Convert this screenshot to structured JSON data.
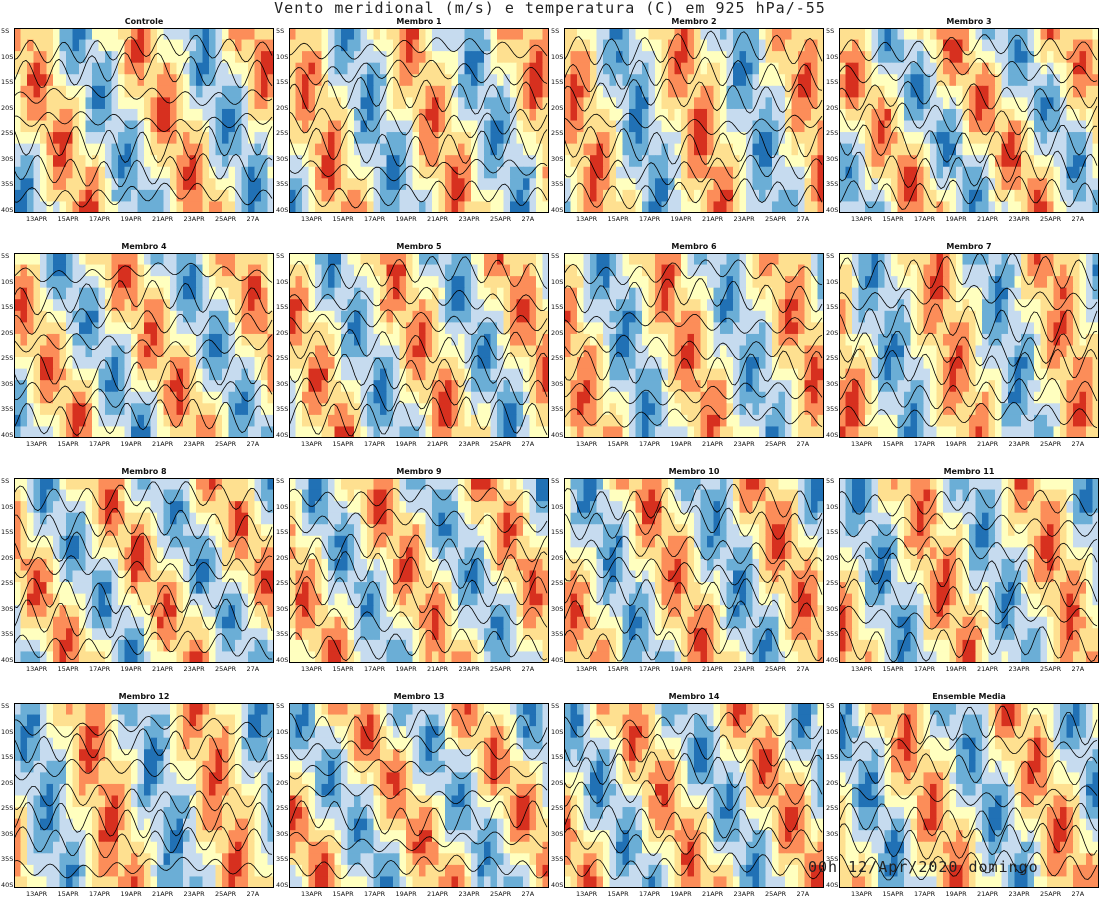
{
  "title": "Vento meridional (m/s) e temperatura (C)  em 925  hPa/-55",
  "timestamp": "00h 12/Apr/2020 domingo",
  "colors": {
    "warm_strong": "#d7301f",
    "warm_mid": "#fc8d59",
    "warm_light": "#fee090",
    "neutral": "#ffffbf",
    "cool_light": "#c6dbef",
    "cool_mid": "#6baed6",
    "cool_strong": "#2171b5",
    "contour": "#000000"
  },
  "chart_data": {
    "type": "heatmap",
    "description_fields": "Hovmoller: filled = meridional wind, contours = temperature",
    "y_ticks": [
      "5S",
      "10S",
      "15S",
      "20S",
      "25S",
      "30S",
      "35S",
      "40S"
    ],
    "x_ticks": [
      "13APR",
      "15APR",
      "17APR",
      "19APR",
      "21APR",
      "23APR",
      "25APR",
      "27A"
    ],
    "panels": [
      {
        "title": "Controle"
      },
      {
        "title": "Membro 1"
      },
      {
        "title": "Membro 2"
      },
      {
        "title": "Membro 3"
      },
      {
        "title": "Membro 4"
      },
      {
        "title": "Membro 5"
      },
      {
        "title": "Membro 6"
      },
      {
        "title": "Membro 7"
      },
      {
        "title": "Membro 8"
      },
      {
        "title": "Membro 9"
      },
      {
        "title": "Membro 10"
      },
      {
        "title": "Membro 11"
      },
      {
        "title": "Membro 12"
      },
      {
        "title": "Membro 13"
      },
      {
        "title": "Membro 14"
      },
      {
        "title": "Ensemble Media"
      }
    ]
  }
}
